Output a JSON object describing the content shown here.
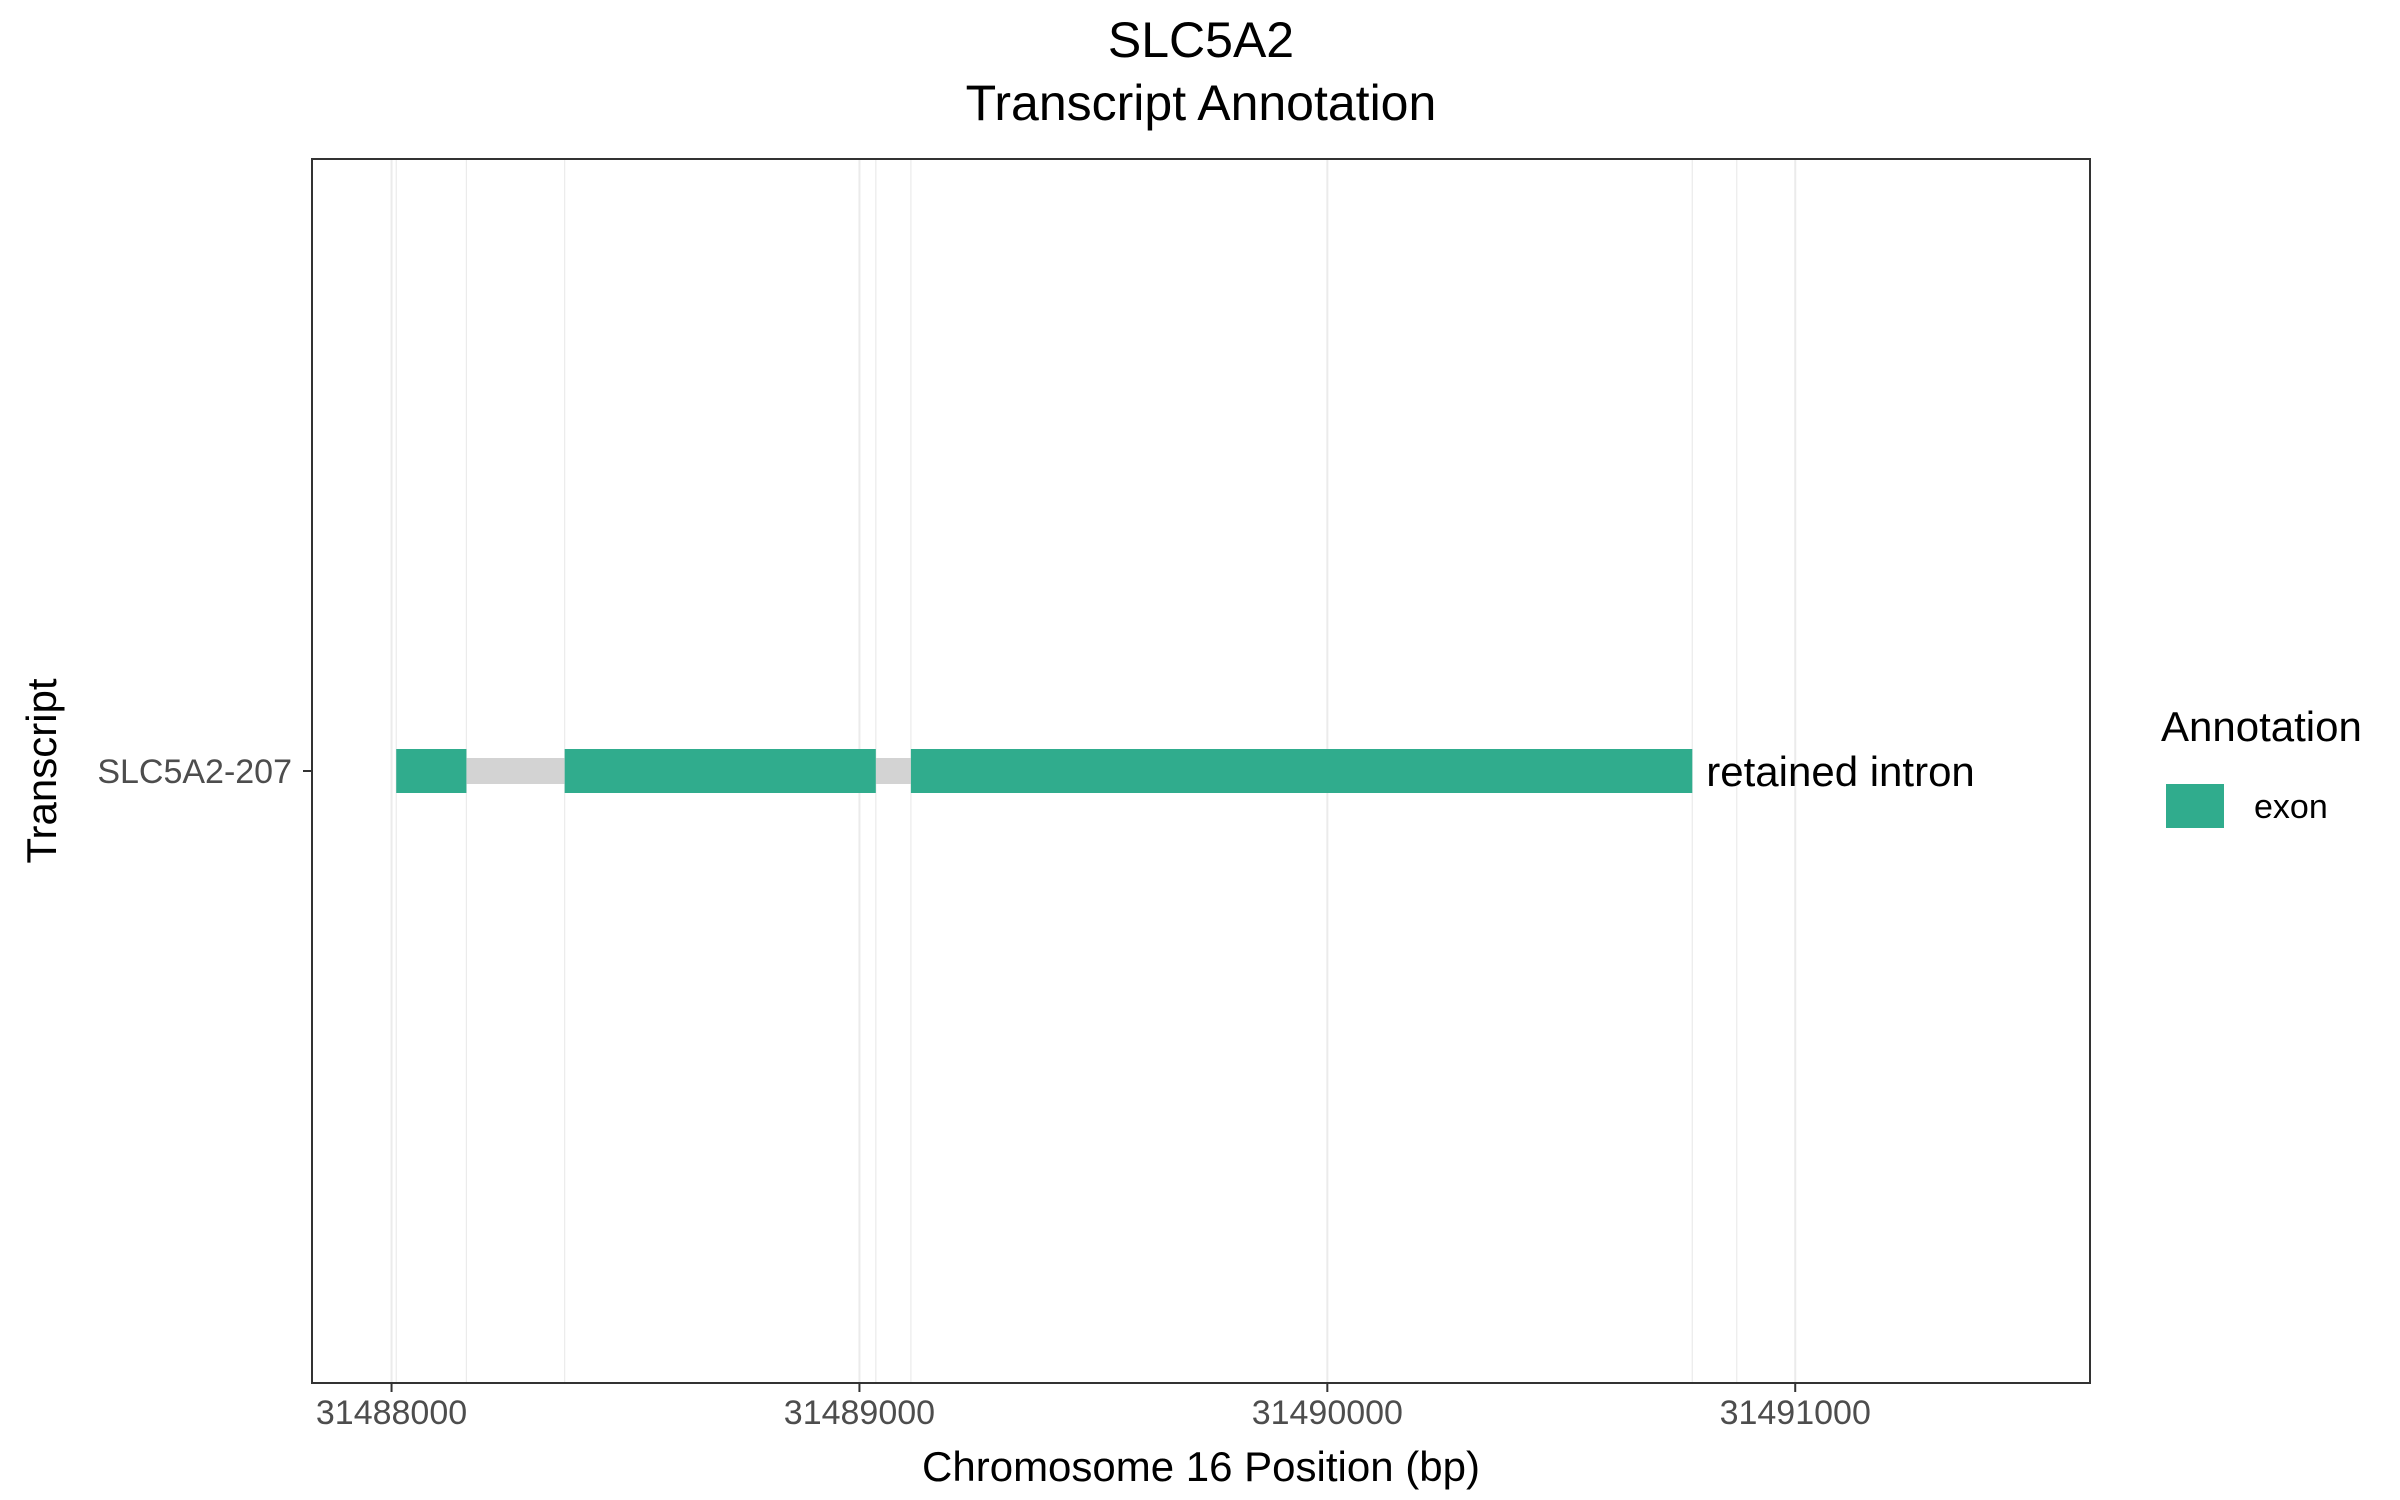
{
  "chart_data": {
    "type": "gene-track",
    "title": "SLC5A2",
    "subtitle": "Transcript Annotation",
    "xlabel": "Chromosome 16 Position (bp)",
    "ylabel": "Transcript",
    "xlim": [
      31487830,
      31491630
    ],
    "x_ticks": [
      31488000,
      31489000,
      31490000,
      31491000
    ],
    "x_tick_labels": [
      "31488000",
      "31489000",
      "31490000",
      "31491000"
    ],
    "y_categories": [
      "SLC5A2-207"
    ],
    "grid": "vertical-minor-and-major",
    "minor_gridlines": [
      31488010,
      31488160,
      31488370,
      31489035,
      31489110,
      31490780,
      31490875
    ],
    "transcripts": [
      {
        "name": "SLC5A2-207",
        "biotype_label": "retained intron",
        "exons": [
          {
            "start": 31488010,
            "end": 31488160
          },
          {
            "start": 31488370,
            "end": 31489035
          },
          {
            "start": 31489110,
            "end": 31490780
          }
        ],
        "introns": [
          {
            "start": 31488160,
            "end": 31488370
          },
          {
            "start": 31489035,
            "end": 31489110
          }
        ]
      }
    ],
    "legend": {
      "title": "Annotation",
      "position": "right",
      "entries": [
        {
          "label": "exon",
          "color": "#30AC8D"
        }
      ]
    },
    "colors": {
      "exon": "#30AC8D",
      "intron": "#D3D3D3",
      "grid": "#EBEBEB",
      "panel_border": "#333333"
    }
  }
}
